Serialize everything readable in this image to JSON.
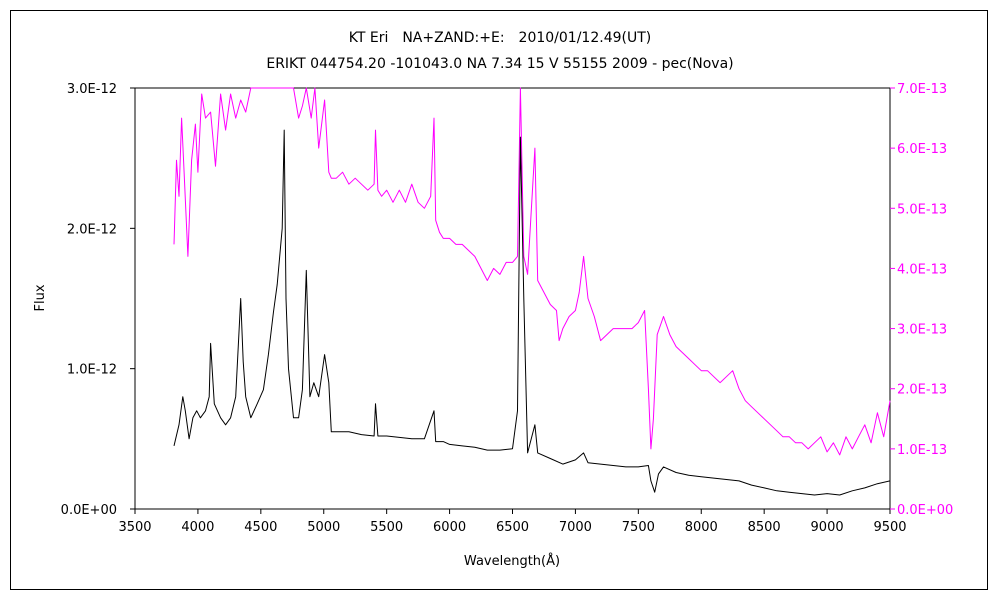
{
  "chart_data": {
    "type": "line",
    "title": "KT Eri　NA+ZAND:+E:　2010/01/12.49(UT)",
    "subtitle": "ERIKT 044754.20 -101043.0 NA 7.34 15 V 55155 2009 - pec(Nova)",
    "xlabel": "Wavelength(Å)",
    "ylabel": "Flux",
    "xlim": [
      3500,
      9500
    ],
    "ylim_left": [
      0,
      3e-12
    ],
    "ylim_right": [
      0,
      7e-13
    ],
    "x_ticks": [
      3500,
      4000,
      4500,
      5000,
      5500,
      6000,
      6500,
      7000,
      7500,
      8000,
      8500,
      9000,
      9500
    ],
    "x_tick_labels": [
      "3500",
      "4000",
      "4500",
      "5000",
      "5500",
      "6000",
      "6500",
      "7000",
      "7500",
      "8000",
      "8500",
      "9000",
      "9500"
    ],
    "y_left_ticks": [
      0,
      1e-12,
      2e-12,
      3e-12
    ],
    "y_left_tick_labels": [
      "0.0E+00",
      "1.0E-12",
      "2.0E-12",
      "3.0E-12"
    ],
    "y_right_ticks": [
      0,
      1e-13,
      2e-13,
      3e-13,
      4e-13,
      5e-13,
      6e-13,
      7e-13
    ],
    "y_right_tick_labels": [
      "0.0E+00",
      "1.0E-13",
      "2.0E-13",
      "3.0E-13",
      "4.0E-13",
      "5.0E-13",
      "6.0E-13",
      "7.0E-13"
    ],
    "grid": false,
    "series": [
      {
        "axis": "left",
        "color": "#000000",
        "x": [
          3810,
          3850,
          3880,
          3900,
          3930,
          3960,
          3990,
          4020,
          4060,
          4090,
          4101,
          4130,
          4180,
          4220,
          4260,
          4300,
          4340,
          4360,
          4380,
          4420,
          4471,
          4520,
          4560,
          4600,
          4630,
          4650,
          4670,
          4686,
          4700,
          4720,
          4760,
          4800,
          4830,
          4861,
          4890,
          4921,
          4960,
          5007,
          5040,
          5060,
          5100,
          5200,
          5300,
          5400,
          5411,
          5430,
          5500,
          5600,
          5700,
          5800,
          5876,
          5890,
          5950,
          6000,
          6100,
          6200,
          6300,
          6400,
          6500,
          6540,
          6563,
          6590,
          6620,
          6678,
          6700,
          6800,
          6900,
          7000,
          7065,
          7100,
          7200,
          7300,
          7400,
          7500,
          7580,
          7600,
          7630,
          7660,
          7700,
          7800,
          7900,
          8000,
          8100,
          8200,
          8300,
          8400,
          8500,
          8600,
          8700,
          8800,
          8900,
          9000,
          9100,
          9200,
          9300,
          9400,
          9500
        ],
        "y": [
          4.5e-13,
          6e-13,
          8e-13,
          7e-13,
          5e-13,
          6.5e-13,
          7e-13,
          6.5e-13,
          7e-13,
          8e-13,
          1.18e-12,
          7.5e-13,
          6.5e-13,
          6e-13,
          6.5e-13,
          8e-13,
          1.5e-12,
          1.05e-12,
          8e-13,
          6.5e-13,
          7.5e-13,
          8.5e-13,
          1.1e-12,
          1.4e-12,
          1.6e-12,
          1.8e-12,
          2e-12,
          2.7e-12,
          1.5e-12,
          1e-12,
          6.5e-13,
          6.5e-13,
          8.5e-13,
          1.7e-12,
          8e-13,
          9e-13,
          8e-13,
          1.1e-12,
          9e-13,
          5.5e-13,
          5.5e-13,
          5.5e-13,
          5.3e-13,
          5.2e-13,
          7.5e-13,
          5.2e-13,
          5.2e-13,
          5.1e-13,
          5e-13,
          5e-13,
          7e-13,
          4.8e-13,
          4.8e-13,
          4.6e-13,
          4.5e-13,
          4.4e-13,
          4.2e-13,
          4.2e-13,
          4.3e-13,
          7e-13,
          2.65e-12,
          1.5e-12,
          4e-13,
          6e-13,
          4e-13,
          3.6e-13,
          3.2e-13,
          3.5e-13,
          4e-13,
          3.3e-13,
          3.2e-13,
          3.1e-13,
          3e-13,
          3e-13,
          3.1e-13,
          2e-13,
          1.2e-13,
          2.5e-13,
          3e-13,
          2.6e-13,
          2.4e-13,
          2.3e-13,
          2.2e-13,
          2.1e-13,
          2e-13,
          1.7e-13,
          1.5e-13,
          1.3e-13,
          1.2e-13,
          1.1e-13,
          1e-13,
          1.1e-13,
          1e-13,
          1.3e-13,
          1.5e-13,
          1.8e-13,
          2e-13
        ]
      },
      {
        "axis": "right",
        "color": "#ff00ff",
        "x": [
          3810,
          3830,
          3850,
          3870,
          3890,
          3920,
          3950,
          3980,
          4000,
          4030,
          4060,
          4101,
          4140,
          4180,
          4220,
          4260,
          4300,
          4340,
          4380,
          4420,
          4471,
          4520,
          4560,
          4600,
          4640,
          4680,
          4720,
          4760,
          4800,
          4830,
          4861,
          4900,
          4930,
          4960,
          5007,
          5040,
          5060,
          5100,
          5150,
          5200,
          5250,
          5300,
          5350,
          5400,
          5411,
          5430,
          5460,
          5500,
          5550,
          5600,
          5650,
          5700,
          5750,
          5800,
          5850,
          5876,
          5890,
          5920,
          5950,
          6000,
          6050,
          6100,
          6150,
          6200,
          6250,
          6300,
          6350,
          6400,
          6450,
          6500,
          6540,
          6563,
          6590,
          6620,
          6650,
          6678,
          6700,
          6750,
          6800,
          6850,
          6870,
          6900,
          6950,
          7000,
          7030,
          7065,
          7100,
          7150,
          7200,
          7250,
          7300,
          7350,
          7400,
          7450,
          7500,
          7550,
          7580,
          7600,
          7620,
          7650,
          7700,
          7750,
          7800,
          7850,
          7900,
          7950,
          8000,
          8050,
          8100,
          8150,
          8200,
          8250,
          8300,
          8350,
          8400,
          8450,
          8500,
          8550,
          8600,
          8650,
          8700,
          8750,
          8800,
          8850,
          8900,
          8950,
          9000,
          9050,
          9100,
          9150,
          9200,
          9250,
          9300,
          9350,
          9400,
          9450,
          9500
        ],
        "y": [
          4.4e-13,
          5.8e-13,
          5.2e-13,
          6.5e-13,
          5.6e-13,
          4.2e-13,
          5.8e-13,
          6.4e-13,
          5.6e-13,
          6.9e-13,
          6.5e-13,
          6.6e-13,
          5.7e-13,
          6.9e-13,
          6.3e-13,
          6.9e-13,
          6.5e-13,
          6.8e-13,
          6.6e-13,
          7e-13,
          7e-13,
          7e-13,
          7e-13,
          7e-13,
          7e-13,
          7e-13,
          7e-13,
          7e-13,
          6.5e-13,
          6.7e-13,
          7e-13,
          6.5e-13,
          7e-13,
          6e-13,
          6.8e-13,
          5.6e-13,
          5.5e-13,
          5.5e-13,
          5.6e-13,
          5.4e-13,
          5.5e-13,
          5.4e-13,
          5.3e-13,
          5.4e-13,
          6.3e-13,
          5.3e-13,
          5.2e-13,
          5.3e-13,
          5.1e-13,
          5.3e-13,
          5.1e-13,
          5.4e-13,
          5.1e-13,
          5e-13,
          5.2e-13,
          6.5e-13,
          4.8e-13,
          4.6e-13,
          4.5e-13,
          4.5e-13,
          4.4e-13,
          4.4e-13,
          4.3e-13,
          4.2e-13,
          4e-13,
          3.8e-13,
          4e-13,
          3.9e-13,
          4.1e-13,
          4.1e-13,
          4.2e-13,
          7e-13,
          4.2e-13,
          3.9e-13,
          5e-13,
          6e-13,
          3.8e-13,
          3.6e-13,
          3.4e-13,
          3.3e-13,
          2.8e-13,
          3e-13,
          3.2e-13,
          3.3e-13,
          3.6e-13,
          4.2e-13,
          3.5e-13,
          3.2e-13,
          2.8e-13,
          2.9e-13,
          3e-13,
          3e-13,
          3e-13,
          3e-13,
          3.1e-13,
          3.3e-13,
          2e-13,
          1e-13,
          1.5e-13,
          2.9e-13,
          3.2e-13,
          2.9e-13,
          2.7e-13,
          2.6e-13,
          2.5e-13,
          2.4e-13,
          2.3e-13,
          2.3e-13,
          2.2e-13,
          2.1e-13,
          2.2e-13,
          2.3e-13,
          2e-13,
          1.8e-13,
          1.7e-13,
          1.6e-13,
          1.5e-13,
          1.4e-13,
          1.3e-13,
          1.2e-13,
          1.2e-13,
          1.1e-13,
          1.1e-13,
          1e-13,
          1.1e-13,
          1.2e-13,
          9.5e-14,
          1.1e-13,
          9e-14,
          1.2e-13,
          1e-13,
          1.2e-13,
          1.4e-13,
          1.1e-13,
          1.6e-13,
          1.2e-13,
          1.8e-13
        ]
      }
    ]
  }
}
